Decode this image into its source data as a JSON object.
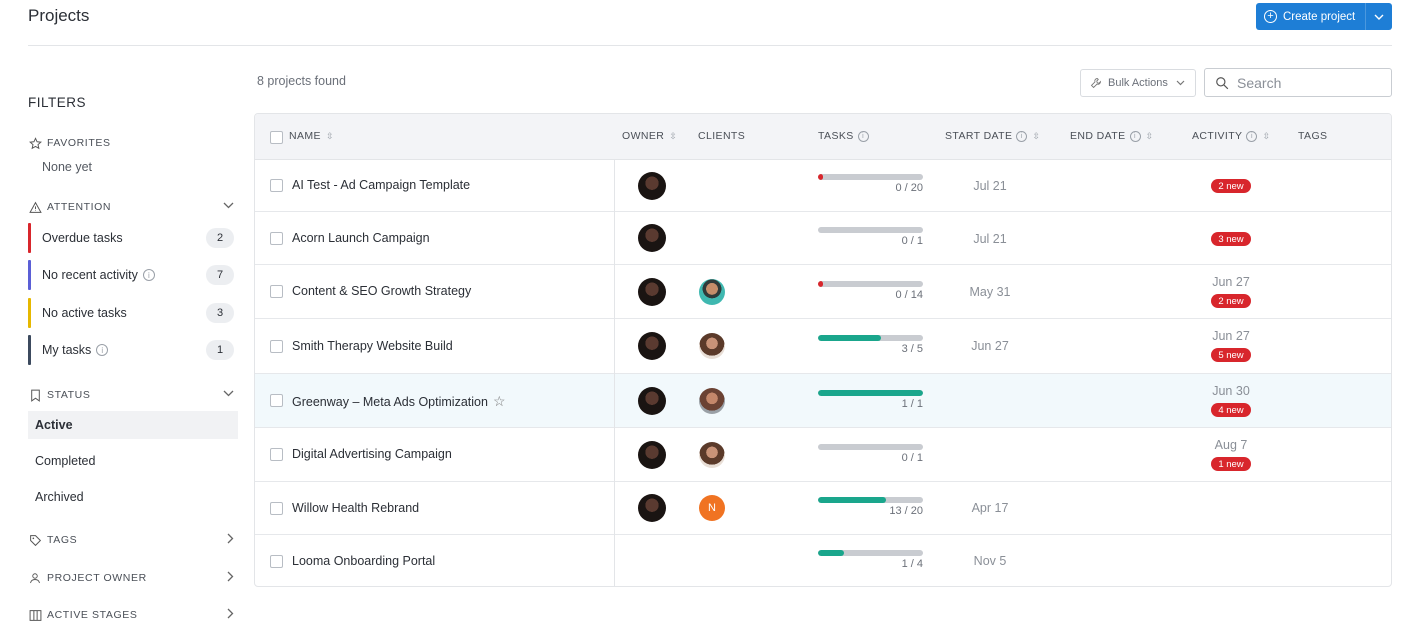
{
  "header": {
    "title": "Projects",
    "create_label": "Create project"
  },
  "sidebar": {
    "filters_title": "FILTERS",
    "favorites": {
      "label": "FAVORITES",
      "empty_text": "None yet"
    },
    "attention": {
      "label": "ATTENTION",
      "items": [
        {
          "label": "Overdue tasks",
          "count": "2",
          "color": "#d8262c"
        },
        {
          "label": "No recent activity",
          "count": "7",
          "color": "#5b5fd6"
        },
        {
          "label": "No active tasks",
          "count": "3",
          "color": "#e6b800"
        },
        {
          "label": "My tasks",
          "count": "1",
          "color": "#3c4a5e"
        }
      ]
    },
    "status": {
      "label": "STATUS",
      "items": [
        "Active",
        "Completed",
        "Archived"
      ]
    },
    "tags": {
      "label": "TAGS"
    },
    "project_owner": {
      "label": "PROJECT OWNER"
    },
    "active_stages": {
      "label": "ACTIVE STAGES"
    }
  },
  "toolbar": {
    "found_text": "8 projects found",
    "bulk_label": "Bulk Actions",
    "search_placeholder": "Search"
  },
  "table": {
    "columns": [
      "NAME",
      "OWNER",
      "CLIENTS",
      "TASKS",
      "START DATE",
      "END DATE",
      "ACTIVITY",
      "TAGS"
    ],
    "rows": [
      {
        "name": "AI Test - Ad Campaign Template",
        "client": "",
        "tasks_text": "0 / 20",
        "progress": 0.05,
        "start": "Jul 21",
        "activity_date": "",
        "activity_badge": "2 new"
      },
      {
        "name": "Acorn Launch Campaign",
        "client": "",
        "tasks_text": "0 / 1",
        "progress": 0,
        "start": "Jul 21",
        "activity_date": "",
        "activity_badge": "3 new"
      },
      {
        "name": "Content & SEO Growth Strategy",
        "client": "c1",
        "tasks_text": "0 / 14",
        "progress": 0.05,
        "start": "May 31",
        "activity_date": "Jun 27",
        "activity_badge": "2 new"
      },
      {
        "name": "Smith Therapy Website Build",
        "client": "c2",
        "tasks_text": "3 / 5",
        "progress": 0.6,
        "start": "Jun 27",
        "activity_date": "Jun 27",
        "activity_badge": "5 new"
      },
      {
        "name": "Greenway – Meta Ads Optimization",
        "client": "c3",
        "tasks_text": "1 / 1",
        "progress": 1.0,
        "start": "",
        "activity_date": "Jun 30",
        "activity_badge": "4 new"
      },
      {
        "name": "Digital Advertising Campaign",
        "client": "c2",
        "tasks_text": "0 / 1",
        "progress": 0,
        "start": "",
        "activity_date": "Aug 7",
        "activity_badge": "1 new"
      },
      {
        "name": "Willow Health Rebrand",
        "client": "N",
        "tasks_text": "13 / 20",
        "progress": 0.65,
        "start": "Apr 17",
        "activity_date": "",
        "activity_badge": ""
      },
      {
        "name": "Looma Onboarding Portal",
        "client": "",
        "tasks_text": "1 / 4",
        "progress": 0.25,
        "start": "Nov 5",
        "activity_date": "",
        "activity_badge": ""
      }
    ]
  },
  "colors": {
    "accent": "#1e7ed6",
    "progress_fill": "#1aa68c",
    "progress_overdue": "#d8262c",
    "badge": "#d8262c",
    "highlight_row": "#f2f9fc"
  }
}
